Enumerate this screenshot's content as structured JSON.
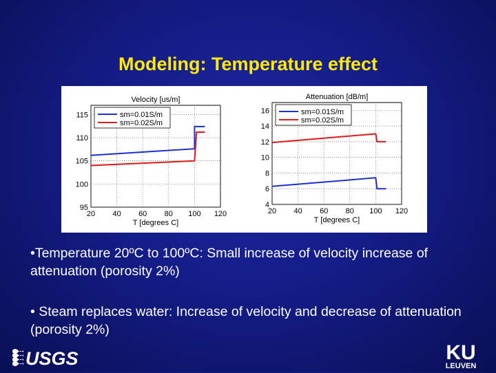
{
  "slide": {
    "title": "Modeling: Temperature effect",
    "bullets": [
      "•Temperature 20ºC to 100ºC: Small increase of velocity increase of attenuation (porosity 2%)",
      "• Steam replaces water: Increase of velocity and decrease of attenuation (porosity 2%)"
    ]
  },
  "logos": {
    "left": "USGS",
    "right_top": "KU",
    "right_bottom": "LEUVEN"
  },
  "colors": {
    "background": "#141c86",
    "title": "#ffea00",
    "series_blue": "#1a2fd6",
    "series_red": "#e01818"
  },
  "chart_data": [
    {
      "type": "line",
      "title": "Velocity [us/m]",
      "xlabel": "T [degrees C]",
      "ylabel": "",
      "xlim": [
        20,
        120
      ],
      "ylim": [
        95,
        117
      ],
      "xticks": [
        20,
        40,
        60,
        80,
        100,
        120
      ],
      "yticks": [
        95,
        100,
        105,
        110,
        115
      ],
      "grid": true,
      "legend": "top-left",
      "series": [
        {
          "name": "sm=0.01S/m",
          "color": "#1a2fd6",
          "points": [
            [
              20,
              106.2
            ],
            [
              100,
              107.6
            ],
            [
              100,
              112.4
            ],
            [
              108,
              112.4
            ]
          ]
        },
        {
          "name": "sm=0.02S/m",
          "color": "#e01818",
          "points": [
            [
              20,
              104.0
            ],
            [
              100,
              105.0
            ],
            [
              101.5,
              111.2
            ],
            [
              108,
              111.2
            ]
          ]
        }
      ]
    },
    {
      "type": "line",
      "title": "Attenuation [dB/m]",
      "xlabel": "T [degrees C]",
      "ylabel": "",
      "xlim": [
        20,
        120
      ],
      "ylim": [
        4,
        17
      ],
      "xticks": [
        20,
        40,
        60,
        80,
        100,
        120
      ],
      "yticks": [
        4,
        6,
        8,
        10,
        12,
        14,
        16
      ],
      "grid": true,
      "legend": "top-left",
      "series": [
        {
          "name": "sm=0.01S/m",
          "color": "#1a2fd6",
          "points": [
            [
              20,
              6.3
            ],
            [
              100,
              7.4
            ],
            [
              101,
              6.0
            ],
            [
              108,
              6.0
            ]
          ]
        },
        {
          "name": "sm=0.02S/m",
          "color": "#e01818",
          "points": [
            [
              20,
              11.9
            ],
            [
              100,
              13.0
            ],
            [
              101,
              12.0
            ],
            [
              108,
              12.0
            ]
          ]
        }
      ]
    }
  ]
}
